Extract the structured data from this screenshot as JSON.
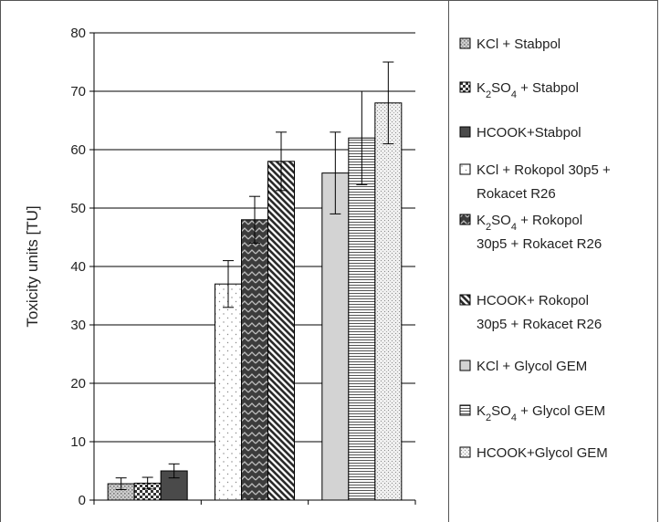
{
  "chart_data": {
    "type": "bar",
    "title": "",
    "xlabel": "",
    "ylabel": "Toxicity units [TU]",
    "ylim": [
      0,
      80
    ],
    "yticks": [
      0,
      10,
      20,
      30,
      40,
      50,
      60,
      70,
      80
    ],
    "grid": true,
    "legend_position": "right",
    "groups": 3,
    "series": [
      {
        "name": "KCl + Stabpol",
        "values": [
          2.8,
          null,
          null
        ],
        "errors": [
          1.0,
          null,
          null
        ],
        "pattern": "dots-gray"
      },
      {
        "name": "K2SO4 + Stabpol",
        "values": [
          2.9,
          null,
          null
        ],
        "errors": [
          1.0,
          null,
          null
        ],
        "pattern": "checker"
      },
      {
        "name": "HCOOK+Stabpol",
        "values": [
          5.0,
          null,
          null
        ],
        "errors": [
          1.2,
          null,
          null
        ],
        "pattern": "dark-solid"
      },
      {
        "name": "KCl + Rokopol 30p5 + Rokacet R26",
        "values": [
          null,
          37,
          null
        ],
        "errors": [
          null,
          4.0,
          null
        ],
        "pattern": "sparse-dots"
      },
      {
        "name": "K2SO4 + Rokopol 30p5 + Rokacet R26",
        "values": [
          null,
          48,
          null
        ],
        "errors": [
          null,
          4.0,
          null
        ],
        "pattern": "dark-zigzag"
      },
      {
        "name": "HCOOK+ Rokopol 30p5 + Rokacet R26",
        "values": [
          null,
          58,
          null
        ],
        "errors": [
          null,
          5.0,
          null
        ],
        "pattern": "diagonal-stripes"
      },
      {
        "name": "KCl + Glycol GEM",
        "values": [
          null,
          null,
          56
        ],
        "errors": [
          null,
          null,
          7.0
        ],
        "pattern": "light-gray"
      },
      {
        "name": "K2SO4 + Glycol GEM",
        "values": [
          null,
          null,
          62
        ],
        "errors": [
          null,
          null,
          8.0
        ],
        "pattern": "horizontal-lines"
      },
      {
        "name": "HCOOK+Glycol GEM",
        "values": [
          null,
          null,
          68
        ],
        "errors": [
          null,
          null,
          7.0
        ],
        "pattern": "fine-dots"
      }
    ]
  },
  "legend": {
    "items": [
      {
        "lines": [
          "KCl + Stabpol"
        ],
        "formula": null
      },
      {
        "lines": [
          "K2SO4 + Stabpol"
        ],
        "formula": "K2SO4"
      },
      {
        "lines": [
          "HCOOK+Stabpol"
        ],
        "formula": null
      },
      {
        "lines": [
          "KCl + Rokopol 30p5 +",
          "Rokacet R26"
        ],
        "formula": null
      },
      {
        "lines": [
          "K2SO4 + Rokopol",
          "30p5 + Rokacet R26"
        ],
        "formula": "K2SO4"
      },
      {
        "lines": [
          "HCOOK+ Rokopol",
          "30p5 + Rokacet R26"
        ],
        "formula": null
      },
      {
        "lines": [
          "KCl + Glycol GEM"
        ],
        "formula": null
      },
      {
        "lines": [
          "K2SO4 + Glycol GEM"
        ],
        "formula": "K2SO4"
      },
      {
        "lines": [
          "HCOOK+Glycol GEM"
        ],
        "formula": null
      }
    ]
  }
}
